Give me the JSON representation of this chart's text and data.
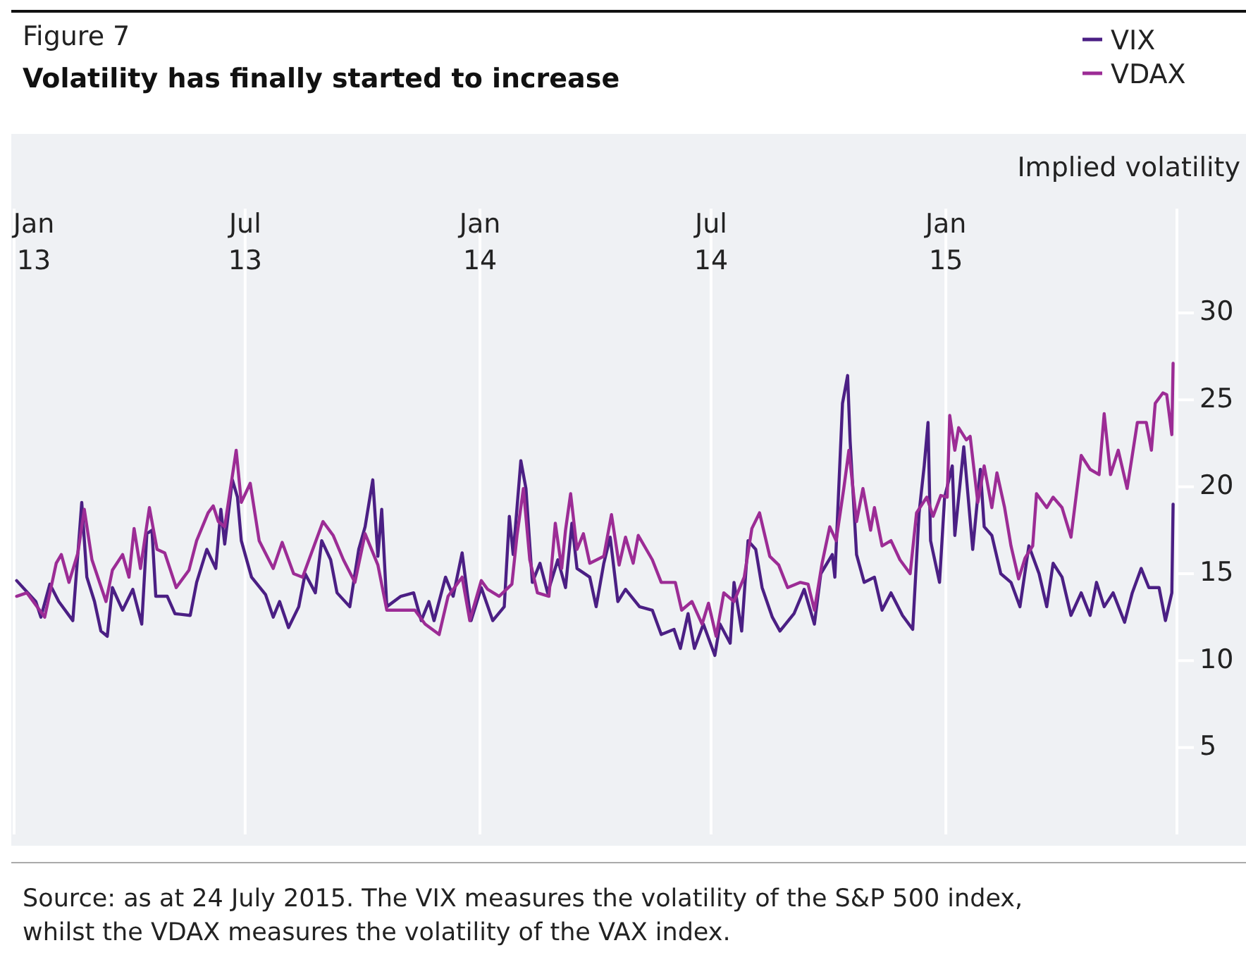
{
  "chart_data": {
    "type": "line",
    "subtitle": "Figure 7",
    "title": "Volatility has finally started to increase",
    "ylabel": "Implied volatility",
    "annotations": [
      "Source: as at 24 July 2015. The VIX measures the volatility of the S&P 500 index, whilst the VDAX measures the volatility of the VAX index."
    ],
    "xlim": [
      "2013-01-01",
      "2015-07-01"
    ],
    "xticks": [
      {
        "value": "2013-01-01",
        "label": "Jan 13"
      },
      {
        "value": "2013-07-01",
        "label": "Jul 13"
      },
      {
        "value": "2014-01-01",
        "label": "Jan 14"
      },
      {
        "value": "2014-07-01",
        "label": "Jul 14"
      },
      {
        "value": "2015-01-01",
        "label": "Jan 15"
      },
      {
        "value": "2015-07-01",
        "label": null
      }
    ],
    "ylim": [
      0,
      36
    ],
    "yticks": [
      5,
      10,
      15,
      20,
      25,
      30
    ],
    "grid": "x",
    "legend": "top right",
    "line_style": "solid",
    "marker": "none",
    "series": [
      {
        "name": "VIX",
        "color": "#4b1f84",
        "x": [
          "2013-01-03",
          "2013-01-18",
          "2013-01-22",
          "2013-01-29",
          "2013-02-05",
          "2013-02-16",
          "2013-02-23",
          "2013-02-27",
          "2013-03-05",
          "2013-03-10",
          "2013-03-15",
          "2013-03-19",
          "2013-03-27",
          "2013-04-04",
          "2013-04-11",
          "2013-04-15",
          "2013-04-19",
          "2013-04-22",
          "2013-05-01",
          "2013-05-07",
          "2013-05-19",
          "2013-05-24",
          "2013-06-01",
          "2013-06-08",
          "2013-06-12",
          "2013-06-15",
          "2013-06-21",
          "2013-06-25",
          "2013-06-28",
          "2013-07-06",
          "2013-07-17",
          "2013-07-23",
          "2013-07-28",
          "2013-08-04",
          "2013-08-12",
          "2013-08-17",
          "2013-08-25",
          "2013-08-30",
          "2013-09-06",
          "2013-09-11",
          "2013-09-21",
          "2013-09-28",
          "2013-10-03",
          "2013-10-09",
          "2013-10-13",
          "2013-10-16",
          "2013-10-20",
          "2013-10-31",
          "2013-11-10",
          "2013-11-16",
          "2013-11-22",
          "2013-11-26",
          "2013-12-05",
          "2013-12-11",
          "2013-12-18",
          "2013-12-22",
          "2013-12-25",
          "2014-01-02",
          "2014-01-11",
          "2014-01-20",
          "2014-01-24",
          "2014-01-27",
          "2014-02-02",
          "2014-02-06",
          "2014-02-11",
          "2014-02-17",
          "2014-02-23",
          "2014-03-03",
          "2014-03-09",
          "2014-03-14",
          "2014-03-18",
          "2014-03-28",
          "2014-04-02",
          "2014-04-08",
          "2014-04-13",
          "2014-04-19",
          "2014-04-25",
          "2014-05-06",
          "2014-05-16",
          "2014-05-23",
          "2014-06-02",
          "2014-06-07",
          "2014-06-13",
          "2014-06-18",
          "2014-06-25",
          "2014-07-04",
          "2014-07-08",
          "2014-07-16",
          "2014-07-19",
          "2014-07-25",
          "2014-07-30",
          "2014-08-05",
          "2014-08-10",
          "2014-08-18",
          "2014-08-24",
          "2014-09-04",
          "2014-09-12",
          "2014-09-20",
          "2014-09-25",
          "2014-10-04",
          "2014-10-06",
          "2014-10-12",
          "2014-10-16",
          "2014-10-18",
          "2014-10-23",
          "2014-10-29",
          "2014-11-06",
          "2014-11-12",
          "2014-11-19",
          "2014-11-28",
          "2014-12-06",
          "2014-12-11",
          "2014-12-15",
          "2014-12-18",
          "2014-12-20",
          "2014-12-27",
          "2014-12-31",
          "2015-01-06",
          "2015-01-08",
          "2015-01-15",
          "2015-01-22",
          "2015-01-28",
          "2015-01-31",
          "2015-02-06",
          "2015-02-13",
          "2015-02-21",
          "2015-02-28",
          "2015-03-07",
          "2015-03-15",
          "2015-03-21",
          "2015-03-26",
          "2015-04-02",
          "2015-04-09",
          "2015-04-17",
          "2015-04-24",
          "2015-04-29",
          "2015-05-05",
          "2015-05-12",
          "2015-05-21",
          "2015-05-27",
          "2015-06-03",
          "2015-06-09",
          "2015-06-17",
          "2015-06-22",
          "2015-06-27",
          "2015-06-28"
        ],
        "values": [
          14.6,
          13.4,
          12.5,
          14.4,
          13.4,
          12.3,
          19.1,
          14.8,
          13.4,
          11.7,
          11.4,
          14.2,
          12.9,
          14.1,
          12.1,
          17.3,
          17.5,
          13.7,
          13.7,
          12.7,
          12.6,
          14.5,
          16.4,
          15.3,
          18.7,
          16.7,
          20.4,
          19.4,
          16.9,
          14.8,
          13.8,
          12.5,
          13.4,
          11.9,
          13.1,
          15.0,
          13.9,
          16.9,
          15.8,
          13.9,
          13.1,
          16.4,
          17.7,
          20.4,
          16.0,
          18.7,
          13.1,
          13.7,
          13.9,
          12.3,
          13.4,
          12.3,
          14.8,
          13.7,
          16.2,
          13.9,
          12.3,
          14.2,
          12.3,
          13.1,
          18.3,
          16.1,
          21.5,
          19.9,
          14.5,
          15.6,
          13.9,
          15.8,
          14.2,
          17.9,
          15.3,
          14.8,
          13.1,
          15.6,
          17.1,
          13.4,
          14.1,
          13.1,
          12.9,
          11.5,
          11.8,
          10.7,
          12.7,
          10.7,
          12.1,
          10.3,
          12.1,
          11.0,
          14.5,
          11.7,
          16.9,
          16.4,
          14.2,
          12.5,
          11.7,
          12.7,
          14.1,
          12.1,
          15.0,
          16.1,
          14.8,
          24.8,
          26.4,
          22.6,
          16.1,
          14.5,
          14.8,
          12.9,
          13.9,
          12.6,
          11.8,
          18.5,
          21.2,
          23.7,
          16.9,
          14.5,
          19.4,
          21.2,
          17.2,
          22.3,
          16.4,
          21.0,
          17.7,
          17.2,
          15.0,
          14.5,
          13.1,
          16.6,
          15.0,
          13.1,
          15.6,
          14.8,
          12.6,
          13.9,
          12.6,
          14.5,
          13.1,
          13.9,
          12.2,
          13.9,
          15.3,
          14.2,
          14.2,
          12.3,
          13.9,
          19.0
        ]
      },
      {
        "name": "VDAX",
        "color": "#9c2c95",
        "x": [
          "2013-01-03",
          "2013-01-11",
          "2013-01-25",
          "2013-02-03",
          "2013-02-07",
          "2013-02-13",
          "2013-02-20",
          "2013-02-25",
          "2013-03-03",
          "2013-03-14",
          "2013-03-19",
          "2013-03-27",
          "2013-04-01",
          "2013-04-05",
          "2013-04-10",
          "2013-04-17",
          "2013-04-23",
          "2013-04-29",
          "2013-05-08",
          "2013-05-18",
          "2013-05-24",
          "2013-06-02",
          "2013-06-06",
          "2013-06-10",
          "2013-06-15",
          "2013-06-24",
          "2013-06-28",
          "2013-07-05",
          "2013-07-12",
          "2013-07-23",
          "2013-07-30",
          "2013-08-08",
          "2013-08-15",
          "2013-08-31",
          "2013-09-08",
          "2013-09-16",
          "2013-09-25",
          "2013-10-03",
          "2013-10-13",
          "2013-10-20",
          "2013-10-31",
          "2013-11-11",
          "2013-11-19",
          "2013-11-30",
          "2013-12-07",
          "2013-12-18",
          "2013-12-24",
          "2014-01-02",
          "2014-01-07",
          "2014-01-16",
          "2014-01-26",
          "2014-01-30",
          "2014-02-04",
          "2014-02-09",
          "2014-02-15",
          "2014-02-24",
          "2014-03-01",
          "2014-03-06",
          "2014-03-09",
          "2014-03-13",
          "2014-03-18",
          "2014-03-23",
          "2014-03-28",
          "2014-04-08",
          "2014-04-14",
          "2014-04-20",
          "2014-04-25",
          "2014-05-01",
          "2014-05-05",
          "2014-05-16",
          "2014-05-23",
          "2014-06-03",
          "2014-06-08",
          "2014-06-16",
          "2014-06-24",
          "2014-06-29",
          "2014-07-05",
          "2014-07-11",
          "2014-07-19",
          "2014-07-27",
          "2014-08-02",
          "2014-08-08",
          "2014-08-16",
          "2014-08-23",
          "2014-08-30",
          "2014-09-09",
          "2014-09-15",
          "2014-09-20",
          "2014-09-26",
          "2014-10-02",
          "2014-10-07",
          "2014-10-13",
          "2014-10-17",
          "2014-10-23",
          "2014-10-28",
          "2014-11-03",
          "2014-11-06",
          "2014-11-12",
          "2014-11-19",
          "2014-11-26",
          "2014-12-04",
          "2014-12-09",
          "2014-12-17",
          "2014-12-22",
          "2014-12-28",
          "2015-01-02",
          "2015-01-04",
          "2015-01-08",
          "2015-01-11",
          "2015-01-17",
          "2015-01-20",
          "2015-01-26",
          "2015-01-31",
          "2015-02-06",
          "2015-02-10",
          "2015-02-16",
          "2015-02-21",
          "2015-02-27",
          "2015-03-04",
          "2015-03-10",
          "2015-03-13",
          "2015-03-21",
          "2015-03-26",
          "2015-04-02",
          "2015-04-09",
          "2015-04-17",
          "2015-04-24",
          "2015-05-01",
          "2015-05-05",
          "2015-05-10",
          "2015-05-16",
          "2015-05-23",
          "2015-05-31",
          "2015-06-07",
          "2015-06-11",
          "2015-06-14",
          "2015-06-20",
          "2015-06-23",
          "2015-06-27",
          "2015-06-28"
        ],
        "values": [
          13.7,
          13.9,
          12.5,
          15.6,
          16.1,
          14.5,
          16.2,
          18.7,
          15.8,
          13.4,
          15.2,
          16.1,
          14.8,
          17.6,
          15.3,
          18.8,
          16.4,
          16.2,
          14.2,
          15.2,
          16.9,
          18.5,
          18.9,
          18.0,
          17.7,
          22.1,
          19.1,
          20.2,
          16.9,
          15.3,
          16.8,
          15.0,
          14.8,
          18.0,
          17.2,
          15.8,
          14.5,
          17.3,
          15.5,
          12.9,
          12.9,
          12.9,
          12.1,
          11.5,
          13.7,
          14.8,
          12.3,
          14.6,
          14.1,
          13.7,
          14.4,
          17.2,
          19.9,
          15.8,
          13.9,
          13.7,
          17.9,
          15.3,
          17.5,
          19.6,
          16.4,
          17.3,
          15.6,
          16.0,
          18.4,
          15.5,
          17.1,
          15.6,
          17.2,
          15.8,
          14.5,
          14.5,
          12.9,
          13.4,
          12.1,
          13.3,
          11.4,
          13.9,
          13.4,
          14.8,
          17.6,
          18.5,
          16.0,
          15.5,
          14.2,
          14.5,
          14.4,
          12.9,
          15.6,
          17.7,
          16.9,
          19.9,
          22.1,
          18.0,
          19.9,
          17.5,
          18.8,
          16.6,
          16.9,
          15.8,
          15.0,
          18.5,
          19.4,
          18.3,
          19.5,
          19.4,
          24.1,
          22.1,
          23.4,
          22.7,
          22.9,
          19.1,
          21.2,
          18.8,
          20.8,
          18.8,
          16.6,
          14.7,
          15.9,
          16.6,
          19.6,
          18.8,
          19.4,
          18.8,
          17.1,
          21.8,
          21.0,
          20.7,
          24.2,
          20.7,
          22.1,
          19.9,
          23.7,
          23.7,
          22.1,
          24.8,
          25.4,
          25.3,
          23.0,
          27.1
        ]
      }
    ]
  }
}
